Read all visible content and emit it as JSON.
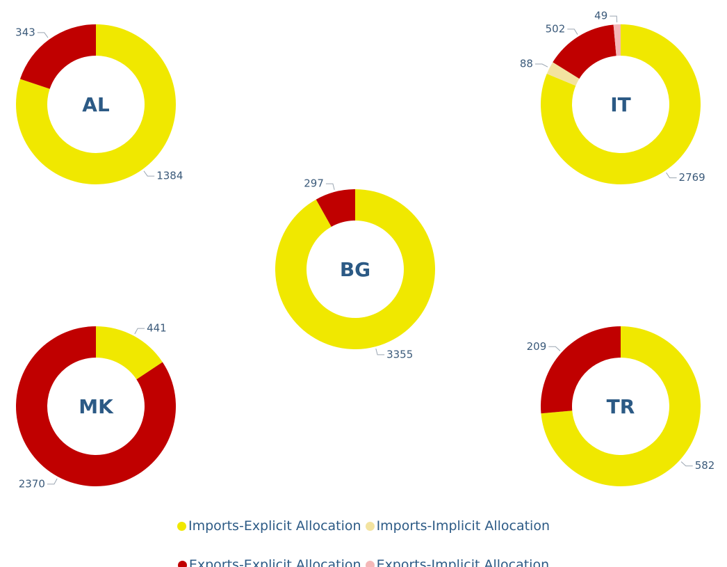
{
  "legend": {
    "names": [
      "Imports-Explicit Allocation",
      "Imports-Implicit Allocation",
      "Exports-Explicit Allocation",
      "Exports-Implicit Allocation"
    ],
    "colors": [
      "#f0e800",
      "#f3e3a0",
      "#c00000",
      "#f4b8b8"
    ]
  },
  "chart_data": [
    {
      "type": "pie",
      "donut": true,
      "title": "AL",
      "values": [
        1384,
        null,
        343,
        null
      ]
    },
    {
      "type": "pie",
      "donut": true,
      "title": "IT",
      "values": [
        2769,
        88,
        502,
        49
      ]
    },
    {
      "type": "pie",
      "donut": true,
      "title": "BG",
      "values": [
        3355,
        null,
        297,
        null
      ]
    },
    {
      "type": "pie",
      "donut": true,
      "title": "MK",
      "values": [
        441,
        null,
        2370,
        null
      ]
    },
    {
      "type": "pie",
      "donut": true,
      "title": "TR",
      "values": [
        582,
        null,
        209,
        null
      ]
    }
  ]
}
